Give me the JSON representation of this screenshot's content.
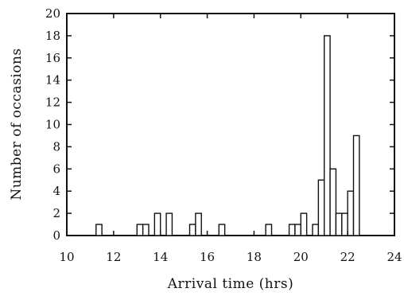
{
  "chart_data": {
    "type": "bar",
    "title": "",
    "xlabel": "Arrival time (hrs)",
    "ylabel": "Number of occasions",
    "xlim": [
      10,
      24
    ],
    "ylim": [
      0,
      20
    ],
    "x_ticks": [
      10,
      12,
      14,
      16,
      18,
      20,
      22,
      24
    ],
    "y_ticks": [
      0,
      2,
      4,
      6,
      8,
      10,
      12,
      14,
      16,
      18,
      20
    ],
    "bin_width": 0.25,
    "bins": [
      {
        "start": 11.25,
        "value": 1
      },
      {
        "start": 13.0,
        "value": 1
      },
      {
        "start": 13.25,
        "value": 1
      },
      {
        "start": 13.75,
        "value": 2
      },
      {
        "start": 14.25,
        "value": 2
      },
      {
        "start": 15.25,
        "value": 1
      },
      {
        "start": 15.5,
        "value": 2
      },
      {
        "start": 16.5,
        "value": 1
      },
      {
        "start": 18.5,
        "value": 1
      },
      {
        "start": 19.5,
        "value": 1
      },
      {
        "start": 19.75,
        "value": 1
      },
      {
        "start": 20.0,
        "value": 2
      },
      {
        "start": 20.5,
        "value": 1
      },
      {
        "start": 20.75,
        "value": 5
      },
      {
        "start": 21.0,
        "value": 18
      },
      {
        "start": 21.25,
        "value": 6
      },
      {
        "start": 21.5,
        "value": 2
      },
      {
        "start": 21.75,
        "value": 2
      },
      {
        "start": 22.0,
        "value": 4
      },
      {
        "start": 22.25,
        "value": 9
      }
    ],
    "grid": false,
    "legend": "none"
  }
}
